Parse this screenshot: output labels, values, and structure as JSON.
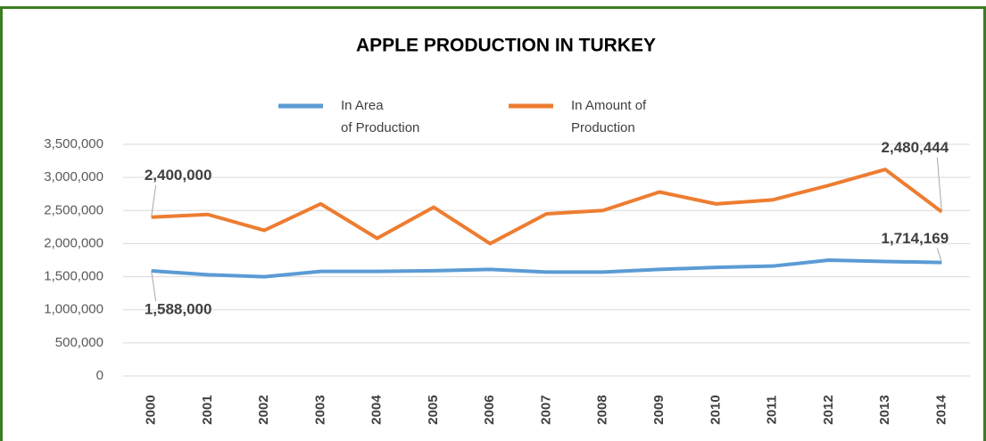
{
  "chart_data": {
    "type": "line",
    "title": "APPLE PRODUCTION IN TURKEY",
    "categories": [
      "2000",
      "2001",
      "2002",
      "2003",
      "2004",
      "2005",
      "2006",
      "2007",
      "2008",
      "2009",
      "2010",
      "2011",
      "2012",
      "2013",
      "2014"
    ],
    "series": [
      {
        "name": "In Area of Production",
        "color": "#5b9bd5",
        "values": [
          1588000,
          1530000,
          1500000,
          1580000,
          1580000,
          1590000,
          1610000,
          1570000,
          1570000,
          1610000,
          1640000,
          1660000,
          1750000,
          1730000,
          1714169
        ],
        "value_labels": [
          "1,588,000",
          null,
          null,
          null,
          null,
          null,
          null,
          null,
          null,
          null,
          null,
          null,
          null,
          null,
          "1,714,169"
        ]
      },
      {
        "name": "In Amount of Production",
        "color": "#ed7d31",
        "values": [
          2400000,
          2440000,
          2200000,
          2600000,
          2080000,
          2550000,
          2000000,
          2450000,
          2500000,
          2780000,
          2600000,
          2660000,
          2880000,
          3120000,
          2480444
        ],
        "value_labels": [
          "2,400,000",
          null,
          null,
          null,
          null,
          null,
          null,
          null,
          null,
          null,
          null,
          null,
          null,
          null,
          "2,480,444"
        ]
      }
    ],
    "ylim": [
      0,
      3500000
    ],
    "yticks": [
      0,
      {
        "value": 500000,
        "label": "500,000"
      },
      {
        "value": 1000000,
        "label": "1,000,000"
      },
      {
        "value": 1500000,
        "label": "1,500,000"
      },
      {
        "value": 2000000,
        "label": "2,000,000"
      },
      {
        "value": 2500000,
        "label": "2,500,000"
      },
      {
        "value": 3000000,
        "label": "3,000,000"
      },
      {
        "value": 3500000,
        "label": "3,500,000"
      }
    ],
    "grid": true,
    "legend": "top"
  }
}
